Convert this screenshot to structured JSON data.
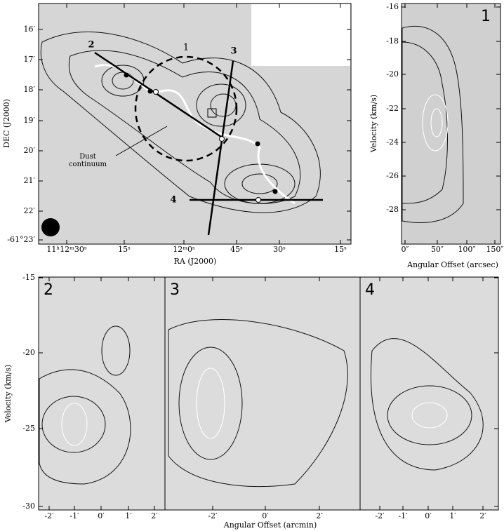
{
  "map": {
    "xlabel": "RA (J2000)",
    "ylabel": "DEC (J2000)",
    "xticks": [
      "11ʰ12ᵐ30ˢ",
      "15ˢ",
      "12ᵐ0ˢ",
      "45ˢ",
      "30ˢ",
      "15ˢ"
    ],
    "yticks": [
      "16′",
      "17′",
      "18′",
      "19′",
      "20′",
      "21′",
      "22′",
      "-61°23′"
    ],
    "cuts": [
      "1",
      "2",
      "3",
      "4"
    ],
    "dust": "Dust continuum"
  },
  "pv1": {
    "label": "1",
    "ylabel": "Velocity (km/s)",
    "xlabel": "Angular Offset (arcsec)",
    "yticks": [
      "-16",
      "-18",
      "-20",
      "-22",
      "-24",
      "-26",
      "-28"
    ],
    "xticks": [
      "0″",
      "50″",
      "100″",
      "150″"
    ]
  },
  "bottom": {
    "ylabel": "Velocity (km/s)",
    "xlabel": "Angular Offset (arcmin)",
    "yticks": [
      "-15",
      "-20",
      "-25",
      "-30"
    ],
    "panels": [
      {
        "label": "2",
        "xticks": [
          "-2′",
          "-1′",
          "0′",
          "1′",
          "2′"
        ]
      },
      {
        "label": "3",
        "xticks": [
          "-2′",
          "0′",
          "2′"
        ]
      },
      {
        "label": "4",
        "xticks": [
          "-2′",
          "-1′",
          "0′",
          "1′",
          "2′"
        ]
      }
    ]
  }
}
